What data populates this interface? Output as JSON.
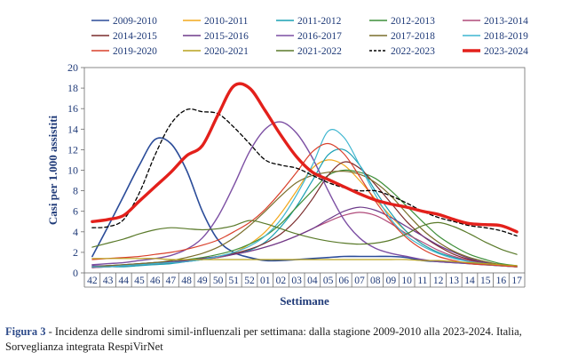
{
  "chart_data": {
    "type": "line",
    "ylabel": "Casi per 1.000 assistiti",
    "xlabel": "Settimane",
    "ylim": [
      0,
      20
    ],
    "yticks": [
      "0",
      "2",
      "4",
      "6",
      "8",
      "10",
      "12",
      "14",
      "16",
      "18",
      "20"
    ],
    "categories": [
      "42",
      "43",
      "44",
      "45",
      "46",
      "47",
      "48",
      "49",
      "50",
      "51",
      "52",
      "01",
      "02",
      "03",
      "04",
      "05",
      "06",
      "07",
      "08",
      "09",
      "10",
      "11",
      "12",
      "13",
      "14",
      "15",
      "16",
      "17"
    ],
    "legend_position": "top",
    "series": [
      {
        "name": "2009-2010",
        "color": "#2b4c99",
        "width": 1.6,
        "dash": "",
        "values": [
          1.6,
          4.5,
          7.5,
          10.5,
          13.0,
          12.6,
          10.0,
          6.0,
          3.2,
          2.0,
          1.5,
          1.2,
          1.2,
          1.3,
          1.4,
          1.5,
          1.6,
          1.6,
          1.6,
          1.6,
          1.5,
          1.2,
          1.1,
          1.0,
          0.9,
          0.8,
          0.7,
          0.6
        ]
      },
      {
        "name": "2010-2011",
        "color": "#f2a81d",
        "width": 1.2,
        "dash": "",
        "values": [
          0.6,
          0.7,
          0.7,
          0.8,
          0.9,
          1.0,
          1.2,
          1.4,
          1.6,
          2.0,
          2.8,
          4.0,
          5.8,
          8.0,
          10.2,
          11.0,
          10.5,
          9.0,
          7.2,
          5.5,
          4.0,
          2.8,
          2.0,
          1.5,
          1.1,
          0.9,
          0.7,
          0.6
        ]
      },
      {
        "name": "2011-2012",
        "color": "#1aa0b4",
        "width": 1.2,
        "dash": "",
        "values": [
          0.5,
          0.6,
          0.6,
          0.7,
          0.8,
          0.9,
          1.1,
          1.3,
          1.5,
          1.8,
          2.2,
          3.0,
          4.5,
          6.5,
          9.0,
          11.5,
          12.0,
          10.5,
          8.0,
          5.8,
          4.0,
          2.8,
          2.0,
          1.5,
          1.1,
          0.8,
          0.7,
          0.6
        ]
      },
      {
        "name": "2012-2013",
        "color": "#3f8f3a",
        "width": 1.2,
        "dash": "",
        "values": [
          0.6,
          0.7,
          0.8,
          0.9,
          1.0,
          1.1,
          1.3,
          1.5,
          1.8,
          2.2,
          2.8,
          3.6,
          4.8,
          6.4,
          8.0,
          9.5,
          10.0,
          9.8,
          9.2,
          8.0,
          6.5,
          5.0,
          3.6,
          2.6,
          1.8,
          1.3,
          0.9,
          0.7
        ]
      },
      {
        "name": "2013-2014",
        "color": "#b04a7a",
        "width": 1.2,
        "dash": "",
        "values": [
          0.5,
          0.6,
          0.7,
          0.8,
          0.9,
          1.0,
          1.1,
          1.3,
          1.5,
          1.8,
          2.1,
          2.5,
          3.0,
          3.6,
          4.3,
          5.0,
          5.6,
          5.9,
          5.6,
          4.8,
          3.8,
          3.0,
          2.2,
          1.6,
          1.2,
          0.9,
          0.7,
          0.6
        ]
      },
      {
        "name": "2014-2015",
        "color": "#7a2b2b",
        "width": 1.2,
        "dash": "",
        "values": [
          0.6,
          0.6,
          0.7,
          0.8,
          0.9,
          1.0,
          1.2,
          1.4,
          1.6,
          1.9,
          2.3,
          2.9,
          3.8,
          5.2,
          7.2,
          9.5,
          10.8,
          10.2,
          8.6,
          6.8,
          5.0,
          3.6,
          2.6,
          1.8,
          1.3,
          1.0,
          0.8,
          0.6
        ]
      },
      {
        "name": "2015-2016",
        "color": "#6e3a8a",
        "width": 1.2,
        "dash": "",
        "values": [
          0.7,
          0.7,
          0.8,
          0.9,
          1.0,
          1.1,
          1.2,
          1.4,
          1.6,
          1.8,
          2.1,
          2.5,
          3.0,
          3.6,
          4.3,
          5.2,
          6.0,
          6.4,
          6.1,
          5.4,
          4.5,
          3.6,
          2.7,
          2.0,
          1.4,
          1.0,
          0.8,
          0.6
        ]
      },
      {
        "name": "2016-2017",
        "color": "#7c4fa3",
        "width": 1.4,
        "dash": "",
        "values": [
          0.8,
          0.9,
          1.0,
          1.2,
          1.4,
          1.7,
          2.3,
          3.4,
          5.5,
          8.5,
          11.8,
          14.0,
          14.7,
          13.6,
          11.2,
          8.0,
          5.2,
          3.4,
          2.4,
          1.9,
          1.6,
          1.3,
          1.1,
          1.0,
          0.9,
          0.8,
          0.7,
          0.6
        ]
      },
      {
        "name": "2017-2018",
        "color": "#7a6e2b",
        "width": 1.2,
        "dash": "",
        "values": [
          0.6,
          0.7,
          0.8,
          0.9,
          1.0,
          1.2,
          1.5,
          1.9,
          2.5,
          3.4,
          4.6,
          6.0,
          7.5,
          8.8,
          9.5,
          9.8,
          9.9,
          9.6,
          8.8,
          7.5,
          5.8,
          4.2,
          3.0,
          2.1,
          1.5,
          1.1,
          0.8,
          0.6
        ]
      },
      {
        "name": "2018-2019",
        "color": "#3fb6d0",
        "width": 1.2,
        "dash": "",
        "values": [
          0.6,
          0.6,
          0.7,
          0.8,
          0.9,
          1.0,
          1.1,
          1.3,
          1.6,
          2.0,
          2.6,
          3.6,
          5.2,
          7.6,
          10.5,
          13.8,
          13.2,
          10.5,
          7.6,
          5.2,
          3.6,
          2.6,
          1.9,
          1.4,
          1.1,
          0.9,
          0.7,
          0.6
        ]
      },
      {
        "name": "2019-2020",
        "color": "#d9402b",
        "width": 1.2,
        "dash": "",
        "values": [
          1.3,
          1.4,
          1.5,
          1.6,
          1.8,
          2.0,
          2.3,
          2.7,
          3.2,
          4.0,
          4.9,
          6.2,
          7.9,
          9.8,
          11.8,
          12.6,
          11.6,
          9.4,
          7.0,
          5.0,
          3.4,
          2.3,
          1.6,
          1.2,
          0.9,
          0.8,
          0.7,
          0.6
        ]
      },
      {
        "name": "2020-2021",
        "color": "#b9a21e",
        "width": 1.2,
        "dash": "",
        "values": [
          1.4,
          1.4,
          1.4,
          1.4,
          1.4,
          1.3,
          1.3,
          1.3,
          1.3,
          1.3,
          1.3,
          1.3,
          1.3,
          1.3,
          1.3,
          1.3,
          1.3,
          1.3,
          1.3,
          1.3,
          1.3,
          1.2,
          1.2,
          1.1,
          1.0,
          0.9,
          0.8,
          0.7
        ]
      },
      {
        "name": "2021-2022",
        "color": "#5a7a2a",
        "width": 1.2,
        "dash": "",
        "values": [
          2.5,
          2.9,
          3.3,
          3.8,
          4.2,
          4.4,
          4.3,
          4.2,
          4.3,
          4.6,
          5.1,
          4.8,
          4.3,
          3.8,
          3.4,
          3.1,
          2.9,
          2.8,
          2.9,
          3.2,
          3.8,
          4.6,
          4.9,
          4.5,
          3.8,
          3.0,
          2.3,
          1.8
        ]
      },
      {
        "name": "2022-2023",
        "color": "#000000",
        "width": 1.3,
        "dash": "4,3",
        "values": [
          4.4,
          4.5,
          5.2,
          7.8,
          11.5,
          14.5,
          15.9,
          15.7,
          15.5,
          14.2,
          12.6,
          11.0,
          10.5,
          10.2,
          9.5,
          8.8,
          8.3,
          8.0,
          8.0,
          7.5,
          6.8,
          6.0,
          5.4,
          5.0,
          4.6,
          4.4,
          4.1,
          3.6
        ]
      },
      {
        "name": "2023-2024",
        "color": "#e3201b",
        "width": 3.4,
        "dash": "",
        "values": [
          5.0,
          5.2,
          5.6,
          7.0,
          8.4,
          9.8,
          11.4,
          12.4,
          15.4,
          18.2,
          18.0,
          15.8,
          13.4,
          11.3,
          9.8,
          9.1,
          8.4,
          7.7,
          7.1,
          6.7,
          6.4,
          6.0,
          5.7,
          5.2,
          4.8,
          4.7,
          4.6,
          4.0
        ]
      }
    ]
  },
  "caption": {
    "lead": "Figura 3",
    "text": " - Incidenza delle sindromi simil-influenzali per settimana: dalla stagione 2009-2010 alla 2023-2024. Italia, Sorveglianza integrata RespiVirNet"
  }
}
